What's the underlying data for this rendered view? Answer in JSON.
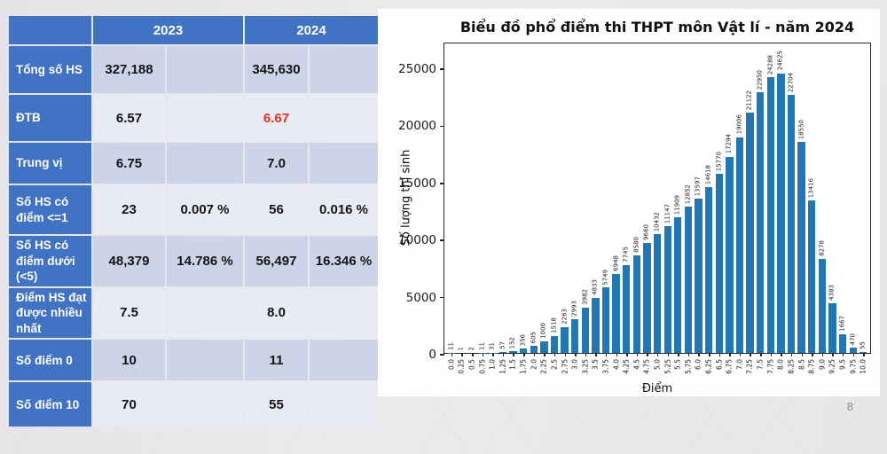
{
  "page": {
    "number": "8"
  },
  "colors": {
    "accent_blue": "#4173c4",
    "band_dark": "#cdd4e8",
    "band_light": "#e9ebf4",
    "bar_blue": "#1f77b4",
    "red_highlight": "#e8301e"
  },
  "table": {
    "header": {
      "corner": "",
      "year_left": "2023",
      "year_right": "2024"
    },
    "rows": [
      {
        "label": "Tổng số HS",
        "values": [
          "327,188",
          "",
          "345,630",
          ""
        ]
      },
      {
        "label": "ĐTB",
        "values": [
          "6.57",
          "",
          "6.67",
          ""
        ],
        "highlight_col": 2
      },
      {
        "label": "Trung vị",
        "values": [
          "6.75",
          "",
          "7.0",
          ""
        ]
      },
      {
        "label": "Số HS có điểm <=1",
        "values": [
          "23",
          "0.007 %",
          "56",
          "0.016 %"
        ]
      },
      {
        "label": "Số HS có điểm dưới (<5)",
        "values": [
          "48,379",
          "14.786 %",
          "56,497",
          "16.346 %"
        ]
      },
      {
        "label": "Điểm HS đạt được nhiều nhất",
        "values": [
          "7.5",
          "",
          "8.0",
          ""
        ]
      },
      {
        "label": "Số điểm 0",
        "values": [
          "10",
          "",
          "11",
          ""
        ]
      },
      {
        "label": "Số điểm 10",
        "values": [
          "70",
          "",
          "55",
          ""
        ]
      }
    ]
  },
  "chart_data": {
    "type": "bar",
    "title": "Biểu đồ phổ điểm thi THPT môn Vật lí - năm 2024",
    "xlabel": "Điểm",
    "ylabel": "Số lượng thí sinh",
    "categories": [
      "0.0",
      "0.25",
      "0.5",
      "0.75",
      "1.0",
      "1.25",
      "1.5",
      "1.75",
      "2.0",
      "2.25",
      "2.5",
      "2.75",
      "3.0",
      "3.25",
      "3.5",
      "3.75",
      "4.0",
      "4.25",
      "4.5",
      "4.75",
      "5.0",
      "5.25",
      "5.5",
      "5.75",
      "6.0",
      "6.25",
      "6.5",
      "6.75",
      "7.0",
      "7.25",
      "7.5",
      "7.75",
      "8.0",
      "8.25",
      "8.5",
      "8.75",
      "9.0",
      "9.25",
      "9.5",
      "9.75",
      "10.0"
    ],
    "values": [
      11,
      1,
      2,
      11,
      31,
      57,
      152,
      356,
      605,
      1000,
      1518,
      2263,
      2993,
      3982,
      4833,
      5749,
      6948,
      7745,
      8580,
      9660,
      10432,
      11147,
      11909,
      12852,
      13597,
      14618,
      15770,
      17294,
      19006,
      21122,
      22950,
      24288,
      24625,
      22704,
      18550,
      13416,
      8278,
      4383,
      1667,
      470,
      55
    ],
    "bar_labels": true,
    "bar_color": "#1f77b4",
    "yticks": [
      0,
      5000,
      10000,
      15000,
      20000,
      25000
    ],
    "ylim": [
      0,
      27250
    ],
    "grid": false,
    "legend": null
  }
}
